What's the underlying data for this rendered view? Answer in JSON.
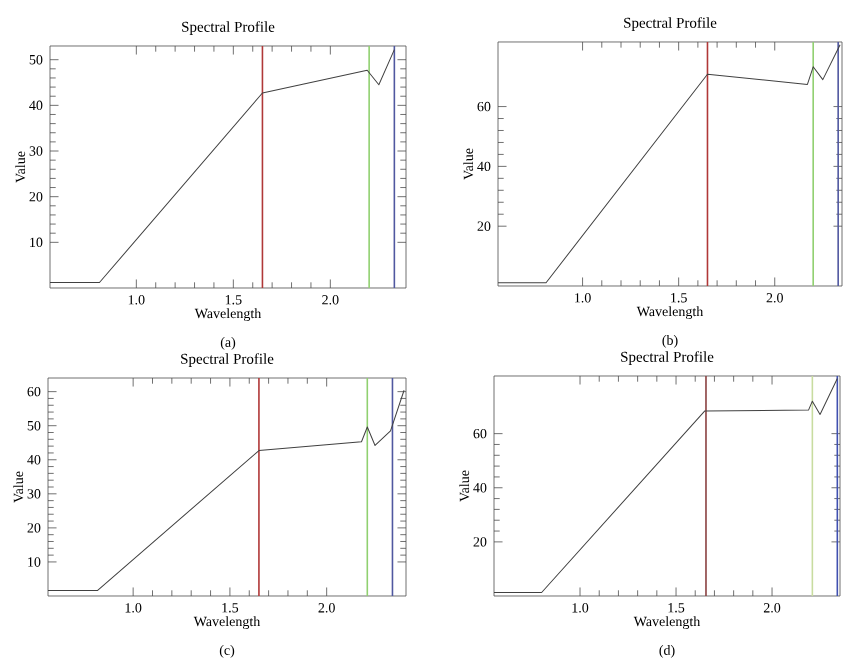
{
  "chart_data": [
    {
      "type": "line",
      "title": "Spectral Profile",
      "xlabel": "Wavelength",
      "ylabel": "Value",
      "annotations": [
        "(a)"
      ],
      "x": [
        0.555,
        0.81,
        1.65,
        2.19,
        2.25,
        2.33
      ],
      "values": [
        1.2,
        1.2,
        42.7,
        47.7,
        44.5,
        52.2
      ],
      "color": "#404040",
      "xlim": [
        0.555,
        2.39
      ],
      "ylim": [
        0,
        53
      ],
      "xticks": [
        {
          "value": 1,
          "label": "1.0"
        },
        {
          "value": 1.5,
          "label": "1.5"
        },
        {
          "value": 2,
          "label": "2.0"
        }
      ],
      "yticks": [
        10,
        20,
        30,
        40,
        50
      ],
      "ref_lines": [
        {
          "axis": "x",
          "value": 1.65,
          "color": "#b03838"
        },
        {
          "axis": "x",
          "value": 2.2,
          "color": "#90d070"
        },
        {
          "axis": "x",
          "value": 2.33,
          "color": "#5058a0"
        }
      ]
    },
    {
      "type": "line",
      "title": "Spectral Profile",
      "xlabel": "Wavelength",
      "ylabel": "Value",
      "annotations": [
        "(b)"
      ],
      "x": [
        0.56,
        0.81,
        1.65,
        2.17,
        2.2,
        2.25,
        2.34
      ],
      "values": [
        1.1,
        1.1,
        70.8,
        67.4,
        73.3,
        69,
        80.7
      ],
      "color": "#404040",
      "xlim": [
        0.56,
        2.35
      ],
      "ylim": [
        0,
        81.6
      ],
      "xticks": [
        {
          "value": 1,
          "label": "1.0"
        },
        {
          "value": 1.5,
          "label": "1.5"
        },
        {
          "value": 2,
          "label": "2.0"
        }
      ],
      "yticks": [
        20,
        40,
        60
      ],
      "ref_lines": [
        {
          "axis": "x",
          "value": 1.65,
          "color": "#b03838"
        },
        {
          "axis": "x",
          "value": 2.2,
          "color": "#90d070"
        },
        {
          "axis": "x",
          "value": 2.33,
          "color": "#5058a0"
        }
      ]
    },
    {
      "type": "line",
      "title": "Spectral Profile",
      "xlabel": "Wavelength",
      "ylabel": "Value",
      "annotations": [
        "(c)"
      ],
      "x": [
        0.56,
        0.815,
        1.65,
        2.18,
        2.21,
        2.25,
        2.33,
        2.4
      ],
      "values": [
        1.6,
        1.6,
        42.7,
        45.3,
        49.6,
        44.2,
        48.5,
        60.4
      ],
      "color": "#404040",
      "xlim": [
        0.56,
        2.41
      ],
      "ylim": [
        0,
        64
      ],
      "xticks": [
        {
          "value": 1,
          "label": "1.0"
        },
        {
          "value": 1.5,
          "label": "1.5"
        },
        {
          "value": 2,
          "label": "2.0"
        }
      ],
      "yticks": [
        10,
        20,
        30,
        40,
        50,
        60
      ],
      "ref_lines": [
        {
          "axis": "x",
          "value": 1.65,
          "color": "#b03838"
        },
        {
          "axis": "x",
          "value": 2.21,
          "color": "#90d070"
        },
        {
          "axis": "x",
          "value": 2.34,
          "color": "#5058a0"
        }
      ]
    },
    {
      "type": "line",
      "title": "Spectral Profile",
      "xlabel": "Wavelength",
      "ylabel": "Value",
      "annotations": [
        "(d)"
      ],
      "x": [
        0.552,
        0.8,
        1.65,
        2.19,
        2.21,
        2.25,
        2.34
      ],
      "values": [
        1.3,
        1.3,
        68.4,
        68.7,
        72,
        67.1,
        80.4
      ],
      "color": "#404040",
      "xlim": [
        0.552,
        2.354
      ],
      "ylim": [
        0,
        81.3
      ],
      "xticks": [
        {
          "value": 1,
          "label": "1.0"
        },
        {
          "value": 1.5,
          "label": "1.5"
        },
        {
          "value": 2,
          "label": "2.0"
        }
      ],
      "yticks": [
        20,
        40,
        60
      ],
      "ref_lines": [
        {
          "axis": "x",
          "value": 1.656,
          "color": "#8a4040"
        },
        {
          "axis": "x",
          "value": 2.21,
          "color": "#c8dca0"
        },
        {
          "axis": "x",
          "value": 2.34,
          "color": "#4050b0"
        }
      ]
    }
  ]
}
